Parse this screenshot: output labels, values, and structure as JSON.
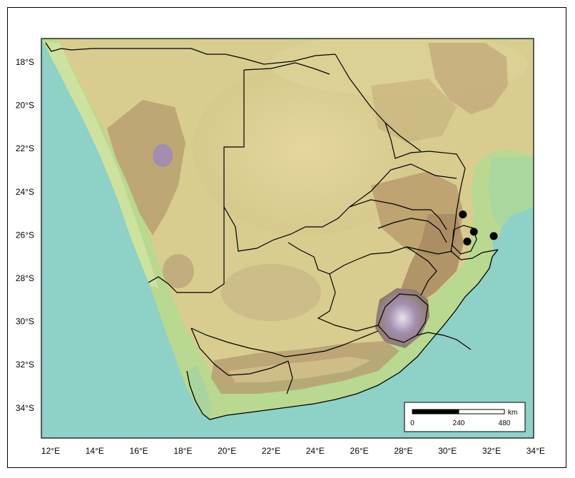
{
  "map": {
    "lat_labels": [
      "18°S",
      "20°S",
      "22°S",
      "24°S",
      "26°S",
      "28°S",
      "30°S",
      "32°S",
      "34°S"
    ],
    "lon_labels": [
      "12°E",
      "14°E",
      "16°E",
      "18°E",
      "20°E",
      "22°E",
      "24°E",
      "26°E",
      "28°E",
      "30°E",
      "32°E",
      "34°E"
    ],
    "colors": {
      "ocean": "#8ed1c6",
      "lowland": "#b8d98f",
      "plateau": "#d7cc8e",
      "highland": "#b59a6c",
      "mountain": "#9a7fa0",
      "border": "#000000",
      "point": "#000000"
    },
    "points": [
      {
        "lon": 30.7,
        "lat": -25.05
      },
      {
        "lon": 31.2,
        "lat": -25.85
      },
      {
        "lon": 30.9,
        "lat": -26.3
      },
      {
        "lon": 32.1,
        "lat": -26.05
      }
    ]
  },
  "scale_bar": {
    "unit": "km",
    "labels": [
      "0",
      "240",
      "480"
    ]
  }
}
